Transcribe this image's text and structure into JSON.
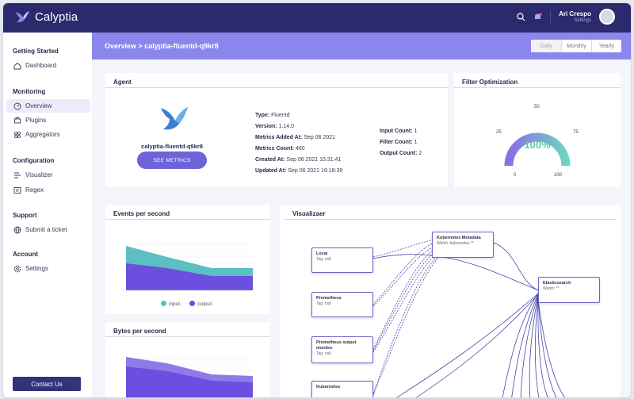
{
  "app": {
    "name": "Calyptia"
  },
  "user": {
    "name": "Ari Crespo",
    "subtitle": "Settings"
  },
  "sidebar": {
    "sections": [
      {
        "title": "Getting Started",
        "items": [
          {
            "label": "Dashboard",
            "icon": "home-icon"
          }
        ]
      },
      {
        "title": "Monitoring",
        "items": [
          {
            "label": "Overview",
            "icon": "gauge-icon"
          },
          {
            "label": "Plugins",
            "icon": "plug-icon"
          },
          {
            "label": "Aggregators",
            "icon": "grid-icon"
          }
        ]
      },
      {
        "title": "Configuration",
        "items": [
          {
            "label": "Visualizer",
            "icon": "flow-icon"
          },
          {
            "label": "Regex",
            "icon": "regex-icon"
          }
        ]
      },
      {
        "title": "Support",
        "items": [
          {
            "label": "Submit a ticket",
            "icon": "globe-icon"
          }
        ]
      },
      {
        "title": "Account",
        "items": [
          {
            "label": "Settings",
            "icon": "gear-icon"
          }
        ]
      }
    ],
    "contact_label": "Contact Us"
  },
  "header": {
    "breadcrumb": "Overview > calyptia-fluentd-q9kr8",
    "periods": [
      "Daily",
      "Monthly",
      "Yearly"
    ]
  },
  "agent": {
    "title": "Agent",
    "name": "calyptia-fluentd-q9kr8",
    "button": "SEE METRICS",
    "fields": [
      {
        "label": "Type:",
        "value": "Fluentd"
      },
      {
        "label": "Version:",
        "value": "1.14.0"
      },
      {
        "label": "Metrics Added At:",
        "value": "Sep 06 2021"
      },
      {
        "label": "Metrics Count:",
        "value": "460"
      },
      {
        "label": "Created At:",
        "value": "Sep 06 2021 15:31:41"
      },
      {
        "label": "Updated At:",
        "value": "Sep 06 2021 16:18:39"
      }
    ],
    "counts": [
      {
        "label": "Input Count:",
        "value": "1"
      },
      {
        "label": "Filter Count:",
        "value": "1"
      },
      {
        "label": "Output Count:",
        "value": "2"
      }
    ]
  },
  "filter": {
    "title": "Filter Optimization",
    "value_label": "100%",
    "value": 100,
    "ticks": [
      "0",
      "25",
      "50",
      "75",
      "100"
    ]
  },
  "events": {
    "title": "Events per second",
    "legend": [
      "input",
      "output"
    ],
    "colors": {
      "input": "#5bbfc3",
      "output": "#6b4fe0"
    }
  },
  "bytes": {
    "title": "Bytes per second"
  },
  "visualizer": {
    "title": "Visualizaer",
    "nodes": [
      {
        "name": "Local",
        "tag": "Tag: null"
      },
      {
        "name": "Prometheus",
        "tag": "Tag: null"
      },
      {
        "name": "Prometheus output monitor",
        "tag": "Tag: null"
      },
      {
        "name": "Kubernetes",
        "tag": ""
      },
      {
        "name": "Kubernetes Metadata",
        "tag": "Watch: kubernetes.**"
      },
      {
        "name": "Elasticsearch",
        "tag": "Watch: **"
      }
    ]
  }
}
